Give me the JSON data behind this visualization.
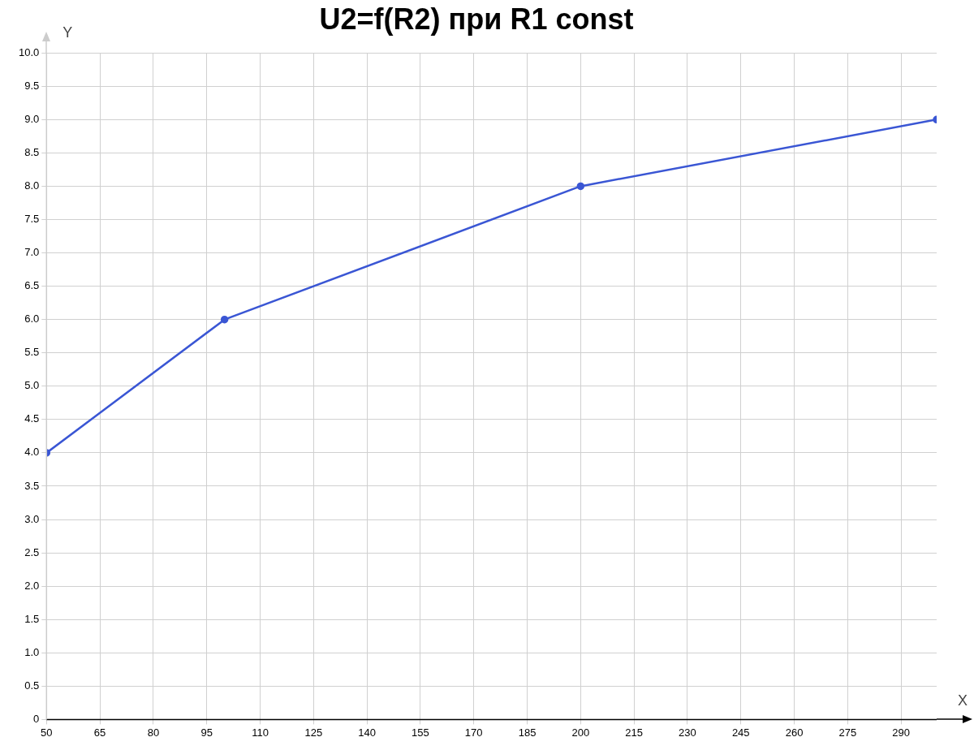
{
  "chart_data": {
    "type": "line",
    "title": "U2=f(R2) при R1 const",
    "xlabel": "X",
    "ylabel": "Y",
    "x": [
      50,
      100,
      200,
      300
    ],
    "series": [
      {
        "color": "#3a56d4",
        "values": [
          4,
          6,
          8,
          9
        ]
      }
    ],
    "xlim": [
      50,
      300
    ],
    "xticks": [
      50,
      65,
      80,
      95,
      110,
      125,
      140,
      155,
      170,
      185,
      200,
      215,
      230,
      245,
      260,
      275,
      290
    ],
    "ylim": [
      0,
      10
    ],
    "yticks": [
      0,
      0.5,
      {
        "value": 1,
        "label": "1.0"
      },
      1.5,
      {
        "value": 2,
        "label": "2.0"
      },
      2.5,
      {
        "value": 3,
        "label": "3.0"
      },
      3.5,
      {
        "value": 4,
        "label": "4.0"
      },
      4.5,
      {
        "value": 5,
        "label": "5.0"
      },
      5.5,
      {
        "value": 6,
        "label": "6.0"
      },
      6.5,
      {
        "value": 7,
        "label": "7.0"
      },
      7.5,
      {
        "value": 8,
        "label": "8.0"
      },
      8.5,
      {
        "value": 9,
        "label": "9.0"
      },
      9.5,
      {
        "value": 10,
        "label": "10.0"
      }
    ],
    "grid": true,
    "legend": false,
    "marker": "circle",
    "line_style": "solid"
  }
}
